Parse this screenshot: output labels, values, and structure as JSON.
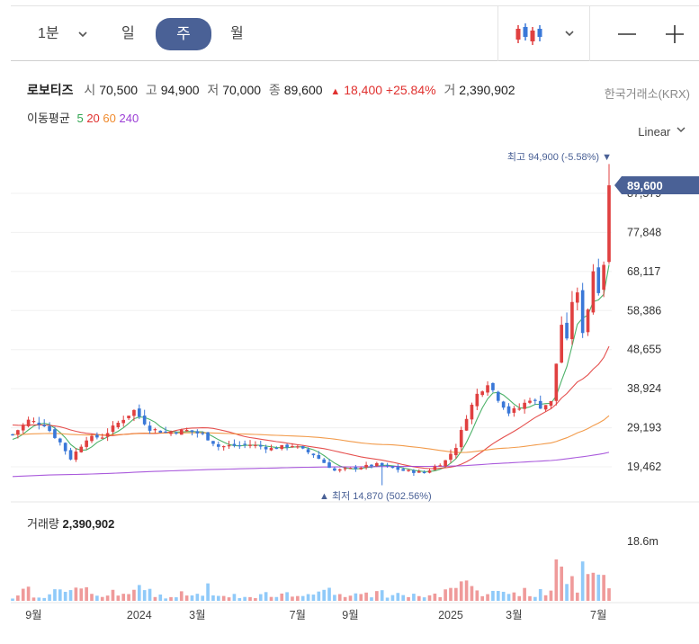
{
  "toolbar": {
    "period_label": "1분",
    "day_label": "일",
    "week_label": "주",
    "month_label": "월"
  },
  "stock": {
    "name": "로보티즈",
    "open_label": "시",
    "open": "70,500",
    "high_label": "고",
    "high": "94,900",
    "low_label": "저",
    "low": "70,000",
    "close_label": "종",
    "close": "89,600",
    "change_arrow": "▲",
    "change": "18,400",
    "change_pct": "+25.84%",
    "volume_label": "거",
    "volume": "2,390,902",
    "exchange": "한국거래소(KRX)"
  },
  "moving_average": {
    "label": "이동평균",
    "periods": [
      {
        "label": "5",
        "color": "#2ea44f"
      },
      {
        "label": "20",
        "color": "#e0312f"
      },
      {
        "label": "60",
        "color": "#f08a2c"
      },
      {
        "label": "240",
        "color": "#9b3ed6"
      }
    ]
  },
  "scale": {
    "label": "Linear"
  },
  "colors": {
    "up": "#e04040",
    "down": "#3a78d8",
    "accent": "#4a6196",
    "vol_up": "#ef9a9a",
    "vol_down": "#90caf9"
  },
  "chart_data": {
    "type": "candlestick",
    "price_axis": {
      "ticks": [
        "87,579",
        "77,848",
        "68,117",
        "58,386",
        "48,655",
        "38,924",
        "29,193",
        "19,462"
      ],
      "values": [
        87579,
        77848,
        68117,
        58386,
        48655,
        38924,
        29193,
        19462
      ],
      "range": [
        14000,
        97000
      ]
    },
    "last_price_label": "89,600",
    "last_price": 89600,
    "high_annotation": "최고 94,900 (-5.58%) ▼",
    "low_annotation": "▲ 최저 14,870 (502.56%)",
    "x_labels": [
      "9월",
      "2024",
      "3월",
      "7월",
      "9월",
      "2025",
      "3월",
      "7월"
    ],
    "volume_panel": {
      "label": "거래량",
      "value": "2,390,902",
      "axis_tick": "18.6m",
      "axis_tick_value": 18600000
    },
    "knots": [
      [
        0,
        27500
      ],
      [
        3,
        31000
      ],
      [
        6,
        30000
      ],
      [
        9,
        25500
      ],
      [
        11,
        21500
      ],
      [
        14,
        26500
      ],
      [
        17,
        27000
      ],
      [
        21,
        31500
      ],
      [
        23,
        33500
      ],
      [
        26,
        29000
      ],
      [
        29,
        28000
      ],
      [
        33,
        28500
      ],
      [
        36,
        27500
      ],
      [
        39,
        24500
      ],
      [
        45,
        25000
      ],
      [
        49,
        24000
      ],
      [
        53,
        24800
      ],
      [
        57,
        22500
      ],
      [
        61,
        18500
      ],
      [
        64,
        19000
      ],
      [
        69,
        20000
      ],
      [
        74,
        18500
      ],
      [
        78,
        18000
      ],
      [
        82,
        21000
      ],
      [
        84,
        24500
      ],
      [
        86,
        32000
      ],
      [
        88,
        37500
      ],
      [
        90,
        40500
      ],
      [
        92,
        36500
      ],
      [
        94,
        33000
      ],
      [
        96,
        34000
      ],
      [
        98,
        36500
      ],
      [
        100,
        34500
      ],
      [
        102,
        35500
      ],
      [
        104,
        55000
      ],
      [
        105,
        50500
      ],
      [
        106,
        61000
      ],
      [
        107,
        62000
      ],
      [
        108,
        53500
      ],
      [
        109,
        59000
      ],
      [
        110,
        68500
      ],
      [
        111,
        64000
      ],
      [
        112,
        70500
      ],
      [
        113,
        89600
      ]
    ],
    "last_candle": {
      "open": 70500,
      "high": 94900,
      "low": 70000,
      "close": 89600
    },
    "x_label_positions": [
      4,
      24,
      35,
      54,
      64,
      83,
      95,
      111
    ]
  }
}
